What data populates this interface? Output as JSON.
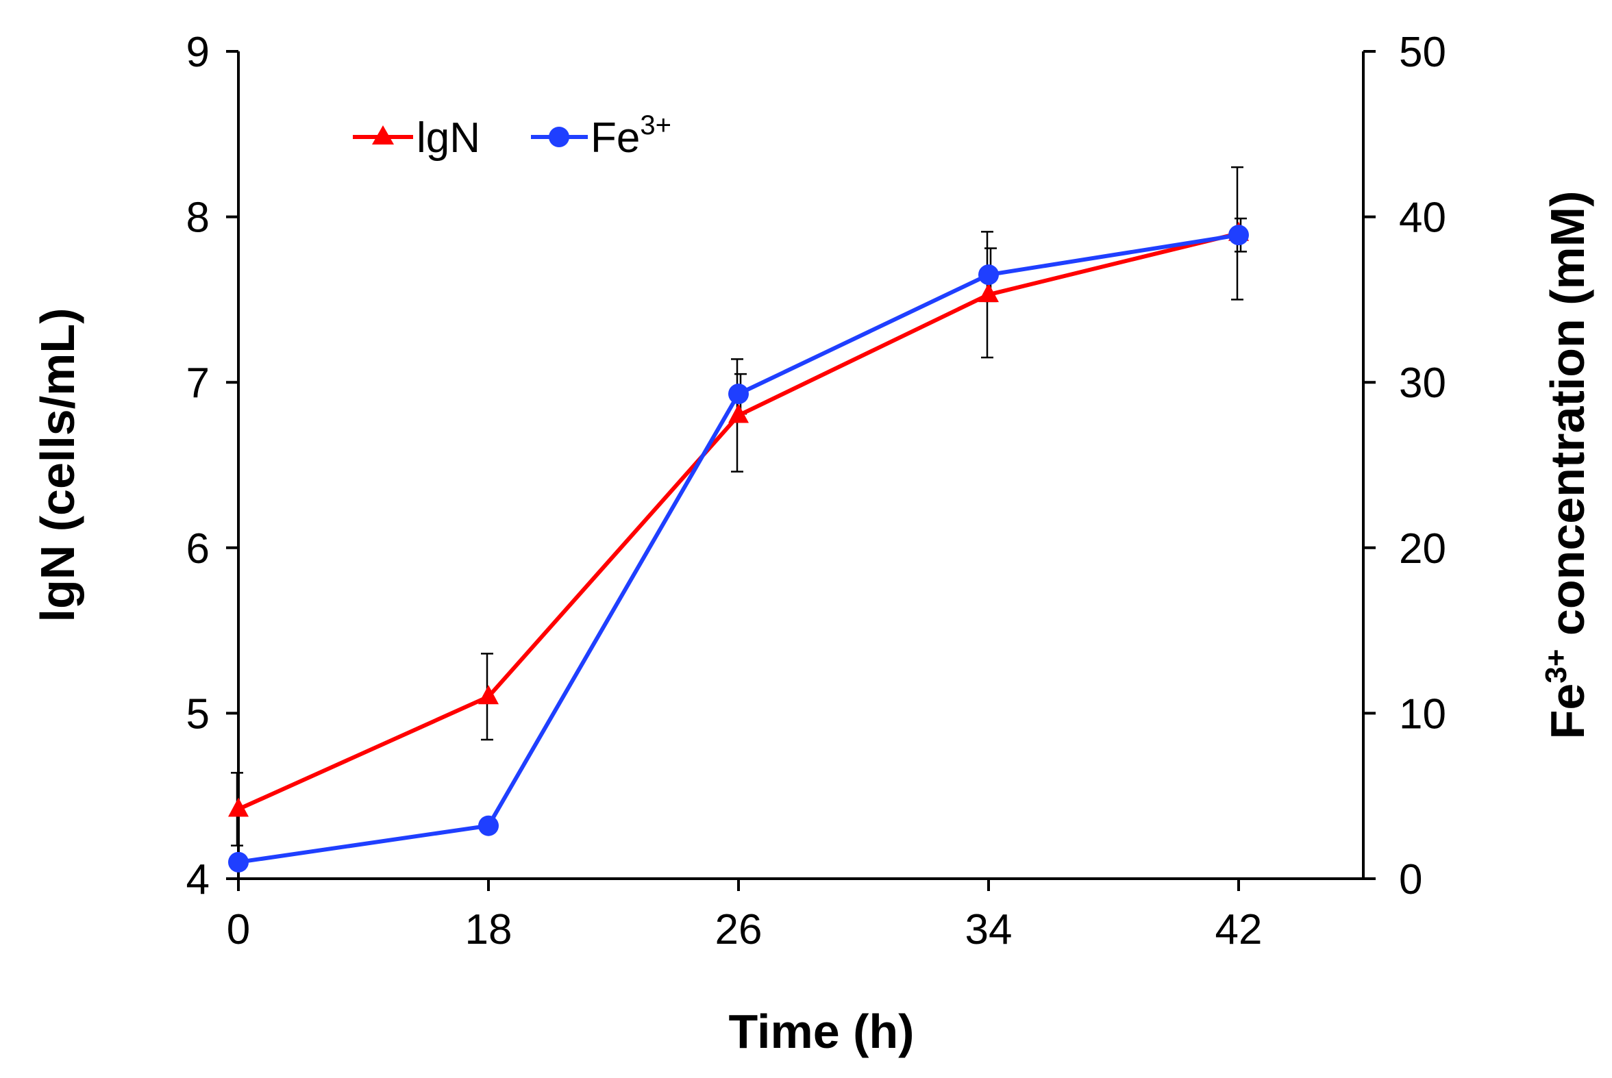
{
  "chart_data": {
    "type": "line",
    "x_categories": [
      "0",
      "18",
      "26",
      "34",
      "42"
    ],
    "x_values": [
      0,
      18,
      26,
      34,
      42
    ],
    "xlabel": "Time (h)",
    "y_left": {
      "label": "lgN (cells/mL)",
      "range": [
        4,
        9
      ],
      "ticks": [
        "4",
        "5",
        "6",
        "7",
        "8",
        "9"
      ]
    },
    "y_right": {
      "label_main": "Fe",
      "label_sup": "3+",
      "label_rest": " concentration (mM)",
      "range": [
        0,
        50
      ],
      "ticks": [
        "0",
        "10",
        "20",
        "30",
        "40",
        "50"
      ]
    },
    "series": [
      {
        "name": "lgN",
        "axis": "left",
        "color": "#ff0000",
        "marker": "triangle",
        "values": [
          4.42,
          5.1,
          6.8,
          7.53,
          7.9
        ],
        "errors": [
          0.22,
          0.26,
          0.34,
          0.38,
          0.4
        ]
      },
      {
        "name": "Fe",
        "name_sup": "3+",
        "axis": "right",
        "color": "#1f3fff",
        "marker": "circle",
        "values": [
          1.0,
          3.2,
          29.3,
          36.5,
          38.9
        ],
        "errors": [
          0.0,
          0.0,
          1.2,
          1.6,
          1.0
        ]
      }
    ],
    "legend": "top-left"
  }
}
